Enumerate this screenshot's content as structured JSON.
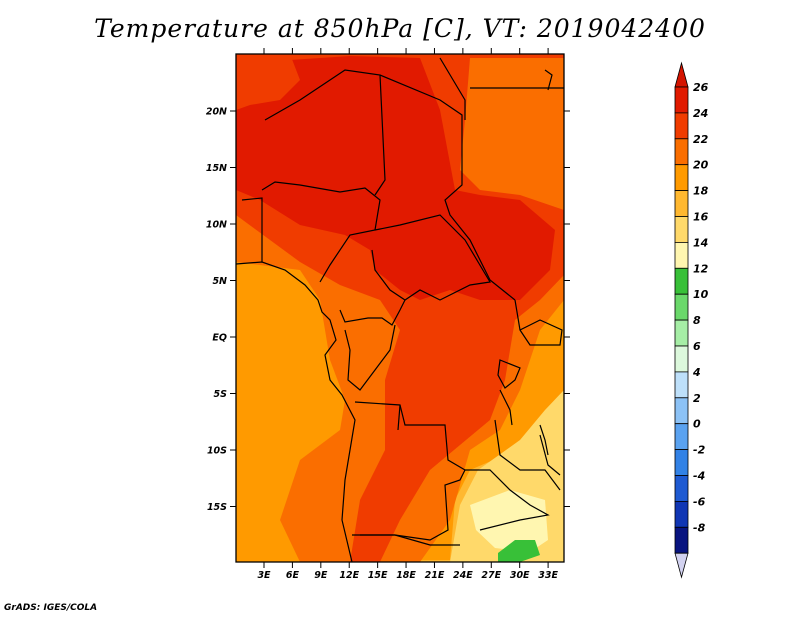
{
  "title": "Temperature at 850hPa [C], VT: 2019042400",
  "credit": "GrADS: IGES/COLA",
  "lat_labels": [
    "20N",
    "15N",
    "10N",
    "5N",
    "EQ",
    "5S",
    "10S",
    "15S"
  ],
  "lat_values": [
    20,
    15,
    10,
    5,
    0,
    -5,
    -10,
    -15
  ],
  "lon_labels": [
    "3E",
    "6E",
    "9E",
    "12E",
    "15E",
    "18E",
    "21E",
    "24E",
    "27E",
    "30E",
    "33E"
  ],
  "lon_values": [
    3,
    6,
    9,
    12,
    15,
    18,
    21,
    24,
    27,
    30,
    33
  ],
  "colorbar": {
    "labels": [
      "26",
      "24",
      "22",
      "20",
      "18",
      "16",
      "14",
      "12",
      "10",
      "8",
      "6",
      "4",
      "2",
      "0",
      "-2",
      "-4",
      "-6",
      "-8"
    ],
    "colors": [
      "#e11a00",
      "#f03c00",
      "#fa6e00",
      "#ff9a00",
      "#ffb830",
      "#ffd96a",
      "#fff6b0",
      "#38c038",
      "#6ad86a",
      "#a6eea6",
      "#dcf8dc",
      "#bee0fa",
      "#8cc2f6",
      "#5aa2f0",
      "#3282e6",
      "#1e5ad2",
      "#1036b4",
      "#081480"
    ],
    "top_arrow_color": "#d41400",
    "bottom_arrow_color": "#d2d2f0"
  },
  "map_colors": {
    "c24": "#e11a00",
    "c22": "#f03c00",
    "c20": "#fa6e00",
    "c18": "#ff9a00",
    "c16": "#ffb830",
    "c14": "#ffd96a",
    "c12": "#fff6b0",
    "green": "#38c038"
  }
}
